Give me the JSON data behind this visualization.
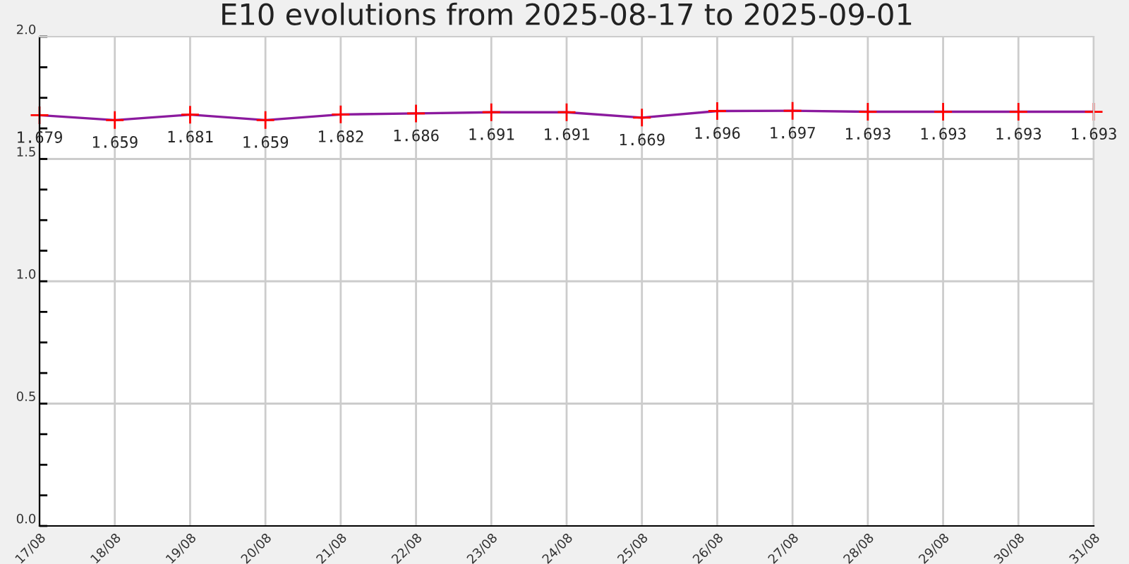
{
  "chart_data": {
    "type": "line",
    "title": "E10 evolutions from 2025-08-17 to 2025-09-01",
    "categories": [
      "17/08",
      "18/08",
      "19/08",
      "20/08",
      "21/08",
      "22/08",
      "23/08",
      "24/08",
      "25/08",
      "26/08",
      "27/08",
      "28/08",
      "29/08",
      "30/08",
      "31/08"
    ],
    "series": [
      {
        "color": "#8b1a9e",
        "values": [
          1.679,
          1.659,
          1.681,
          1.659,
          1.682,
          1.686,
          1.691,
          1.691,
          1.669,
          1.696,
          1.697,
          1.693,
          1.693,
          1.693,
          1.693
        ],
        "colors": [
          "#ff0000",
          "#ff0000",
          "#ff0000",
          "#ff0000",
          "#ff0000",
          "#ff0000",
          "#ff0000",
          "#ff0000",
          "#ff0000",
          "#ff0000",
          "#ff0000",
          "#ff0000",
          "#ff0000",
          "#ff0000",
          "#ff0000"
        ]
      }
    ],
    "marker": "cross",
    "data_labels": true,
    "ylim": [
      0,
      2.0
    ],
    "yticks": [
      {
        "value": 0,
        "label": "0.0"
      },
      {
        "value": 0.125,
        "label": null
      },
      {
        "value": 0.25,
        "label": null
      },
      {
        "value": 0.375,
        "label": null
      },
      {
        "value": 0.5,
        "label": "0.5"
      },
      {
        "value": 0.625,
        "label": null
      },
      {
        "value": 0.75,
        "label": null
      },
      {
        "value": 0.875,
        "label": null
      },
      {
        "value": 1.0,
        "label": "1.0"
      },
      {
        "value": 1.125,
        "label": null
      },
      {
        "value": 1.25,
        "label": null
      },
      {
        "value": 1.375,
        "label": null
      },
      {
        "value": 1.5,
        "label": "1.5"
      },
      {
        "value": 1.625,
        "label": null
      },
      {
        "value": 1.75,
        "label": null
      },
      {
        "value": 1.875,
        "label": null
      },
      {
        "value": 2.0,
        "label": "2.0"
      }
    ],
    "grid": true,
    "legend": false
  }
}
